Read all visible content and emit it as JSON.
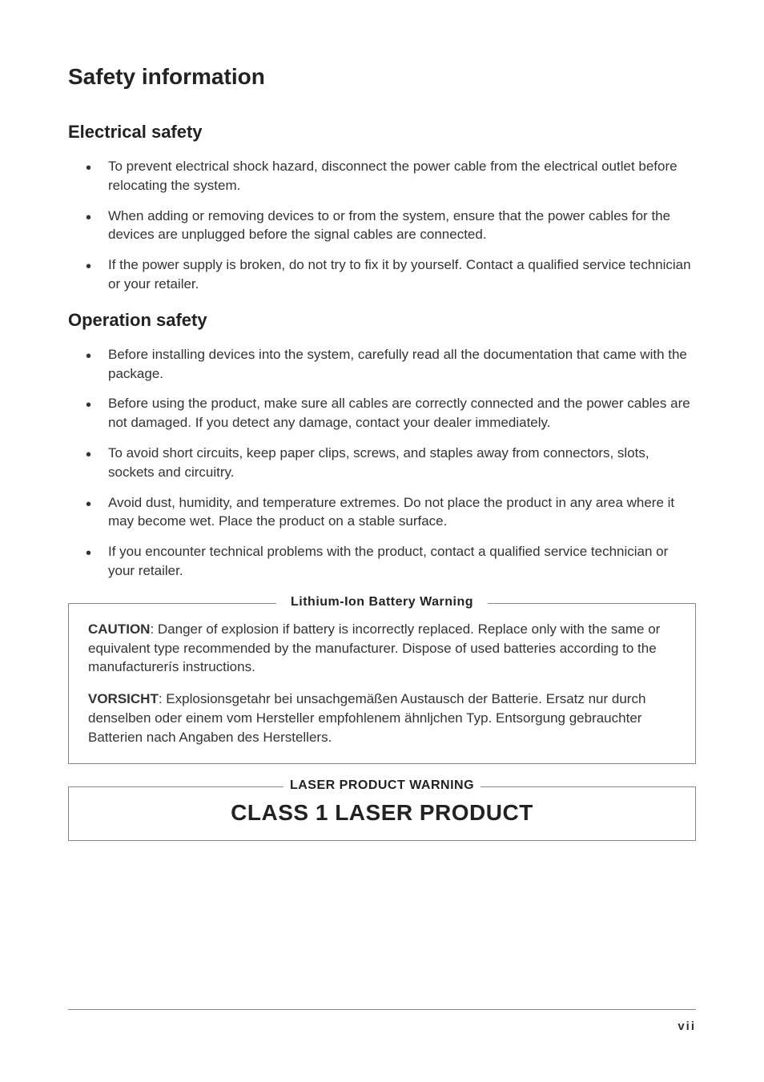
{
  "page": {
    "title": "Safety information",
    "page_number": "vii"
  },
  "sections": [
    {
      "heading": "Electrical safety",
      "bullets": [
        "To prevent electrical shock hazard, disconnect the power cable from the electrical outlet before relocating the system.",
        "When adding or removing devices to or from the system, ensure that the power cables for the devices are unplugged before the signal cables are connected.",
        "If the power supply is broken, do not try to fix it by yourself. Contact a qualified service technician or your retailer."
      ]
    },
    {
      "heading": "Operation safety",
      "bullets": [
        "Before installing devices into the system, carefully read all the documentation that came with the package.",
        "Before using the product, make sure all cables are correctly connected and the power cables are not damaged. If you detect any damage, contact your dealer immediately.",
        "To avoid short circuits, keep paper clips, screws, and staples away from connectors, slots, sockets and circuitry.",
        "Avoid dust, humidity, and temperature extremes. Do not place the product in any area where it may become wet. Place the product on a stable surface.",
        "If you encounter technical problems with the product, contact a qualified service technician or your retailer."
      ]
    }
  ],
  "lithium_warning": {
    "title": "Lithium-Ion Battery Warning",
    "para1_bold": "CAUTION",
    "para1_text": ": Danger of explosion if battery is incorrectly replaced. Replace only with the same or equivalent type recommended by the manufacturer. Dispose of used batteries according to the manufacturerís instructions.",
    "para2_bold": "VORSICHT",
    "para2_text": ": Explosionsgetahr bei unsachgemäßen Austausch der Batterie. Ersatz nur durch denselben oder einem vom Hersteller empfohlenem  ähnljchen Typ. Entsorgung gebrauchter Batterien nach Angaben des Herstellers."
  },
  "laser_warning": {
    "title": "LASER PRODUCT WARNING",
    "text": "CLASS 1 LASER PRODUCT"
  },
  "styling": {
    "background_color": "#ffffff",
    "text_color": "#333333",
    "heading_color": "#222222",
    "border_color": "#888888",
    "title_fontsize": 28,
    "section_heading_fontsize": 22,
    "body_fontsize": 17,
    "warning_title_fontsize": 16,
    "laser_text_fontsize": 28,
    "page_number_fontsize": 15,
    "font_family": "Verdana, Arial, sans-serif",
    "line_height": 1.4
  }
}
